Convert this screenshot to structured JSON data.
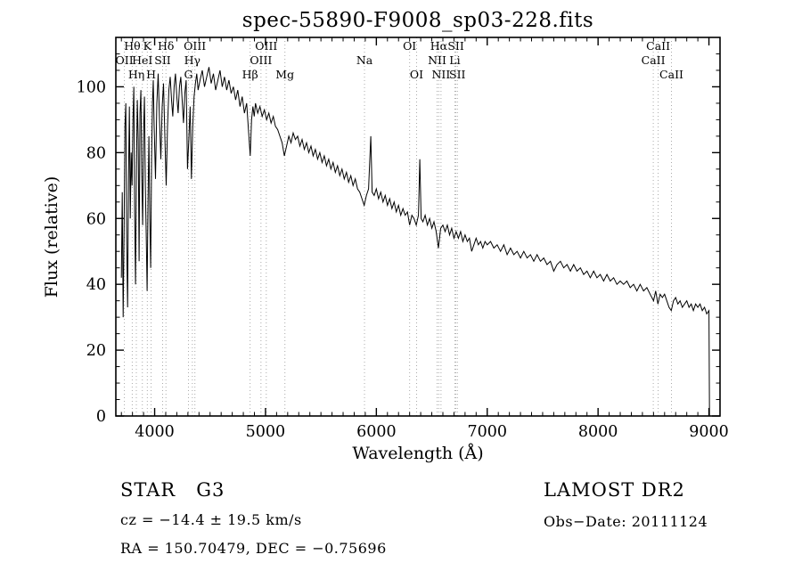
{
  "title": "spec-55890-F9008_sp03-228.fits",
  "annotations": {
    "class_label": "STAR   G3",
    "survey": "LAMOST DR2",
    "cz": "cz = −14.4 ± 19.5 km/s",
    "obs_date": "Obs−Date: 20111124",
    "radec": "RA = 150.70479, DEC = −0.75696"
  },
  "chart_data": {
    "type": "line",
    "title": "spec-55890-F9008_sp03-228.fits",
    "xlabel": "Wavelength (Å)",
    "ylabel": "Flux (relative)",
    "xlim": [
      3650,
      9100
    ],
    "ylim": [
      0,
      115
    ],
    "x_ticks": [
      4000,
      5000,
      6000,
      7000,
      8000,
      9000
    ],
    "y_ticks": [
      0,
      20,
      40,
      60,
      80,
      100
    ],
    "grid": false,
    "legend": "none",
    "line_color": "#000000",
    "feature_line_color": "#aaaaaa",
    "spectral_lines": [
      {
        "label": "Hθ",
        "wavelength": 3798,
        "row": 0
      },
      {
        "label": "K",
        "wavelength": 3934,
        "row": 0
      },
      {
        "label": "Hδ",
        "wavelength": 4102,
        "row": 0
      },
      {
        "label": "OIII",
        "wavelength": 4363,
        "row": 0
      },
      {
        "label": "OIII",
        "wavelength": 5007,
        "row": 0
      },
      {
        "label": "OI",
        "wavelength": 6300,
        "row": 0
      },
      {
        "label": "Hα",
        "wavelength": 6563,
        "row": 0
      },
      {
        "label": "SII",
        "wavelength": 6717,
        "row": 0
      },
      {
        "label": "CaII",
        "wavelength": 8542,
        "row": 0
      },
      {
        "label": "OII",
        "wavelength": 3727,
        "row": 1
      },
      {
        "label": "HeI",
        "wavelength": 3889,
        "row": 1
      },
      {
        "label": "SII",
        "wavelength": 4072,
        "row": 1
      },
      {
        "label": "Hγ",
        "wavelength": 4340,
        "row": 1
      },
      {
        "label": "OIII",
        "wavelength": 4959,
        "row": 1
      },
      {
        "label": "Na",
        "wavelength": 5893,
        "row": 1
      },
      {
        "label": "NII",
        "wavelength": 6548,
        "row": 1
      },
      {
        "label": "Li",
        "wavelength": 6708,
        "row": 1
      },
      {
        "label": "CaII",
        "wavelength": 8498,
        "row": 1
      },
      {
        "label": "Hη",
        "wavelength": 3835,
        "row": 2
      },
      {
        "label": "H",
        "wavelength": 3968,
        "row": 2
      },
      {
        "label": "G",
        "wavelength": 4305,
        "row": 2
      },
      {
        "label": "Hβ",
        "wavelength": 4861,
        "row": 2
      },
      {
        "label": "Mg",
        "wavelength": 5175,
        "row": 2
      },
      {
        "label": "OI",
        "wavelength": 6363,
        "row": 2
      },
      {
        "label": "NII",
        "wavelength": 6583,
        "row": 2
      },
      {
        "label": "SII",
        "wavelength": 6731,
        "row": 2
      },
      {
        "label": "CaII",
        "wavelength": 8662,
        "row": 2
      }
    ],
    "points": [
      [
        3700,
        42
      ],
      [
        3708,
        68
      ],
      [
        3716,
        30
      ],
      [
        3724,
        55
      ],
      [
        3732,
        88
      ],
      [
        3740,
        95
      ],
      [
        3748,
        52
      ],
      [
        3756,
        33
      ],
      [
        3764,
        72
      ],
      [
        3772,
        94
      ],
      [
        3780,
        60
      ],
      [
        3788,
        80
      ],
      [
        3796,
        70
      ],
      [
        3804,
        90
      ],
      [
        3812,
        100
      ],
      [
        3820,
        62
      ],
      [
        3828,
        40
      ],
      [
        3836,
        75
      ],
      [
        3844,
        96
      ],
      [
        3852,
        84
      ],
      [
        3860,
        47
      ],
      [
        3868,
        92
      ],
      [
        3876,
        99
      ],
      [
        3884,
        73
      ],
      [
        3892,
        58
      ],
      [
        3900,
        86
      ],
      [
        3908,
        97
      ],
      [
        3916,
        70
      ],
      [
        3924,
        55
      ],
      [
        3932,
        38
      ],
      [
        3940,
        65
      ],
      [
        3948,
        85
      ],
      [
        3956,
        60
      ],
      [
        3964,
        45
      ],
      [
        3972,
        78
      ],
      [
        3980,
        95
      ],
      [
        3988,
        102
      ],
      [
        3996,
        88
      ],
      [
        4008,
        72
      ],
      [
        4020,
        95
      ],
      [
        4032,
        104
      ],
      [
        4044,
        90
      ],
      [
        4056,
        78
      ],
      [
        4068,
        94
      ],
      [
        4080,
        101
      ],
      [
        4092,
        85
      ],
      [
        4104,
        70
      ],
      [
        4116,
        88
      ],
      [
        4128,
        99
      ],
      [
        4140,
        103
      ],
      [
        4152,
        96
      ],
      [
        4164,
        91
      ],
      [
        4176,
        100
      ],
      [
        4188,
        104
      ],
      [
        4200,
        97
      ],
      [
        4212,
        92
      ],
      [
        4224,
        100
      ],
      [
        4236,
        103
      ],
      [
        4248,
        96
      ],
      [
        4260,
        89
      ],
      [
        4272,
        98
      ],
      [
        4284,
        102
      ],
      [
        4296,
        75
      ],
      [
        4308,
        84
      ],
      [
        4320,
        94
      ],
      [
        4332,
        72
      ],
      [
        4344,
        88
      ],
      [
        4356,
        97
      ],
      [
        4368,
        101
      ],
      [
        4380,
        104
      ],
      [
        4392,
        99
      ],
      [
        4410,
        102
      ],
      [
        4430,
        105
      ],
      [
        4450,
        100
      ],
      [
        4470,
        103
      ],
      [
        4490,
        106
      ],
      [
        4510,
        101
      ],
      [
        4530,
        104
      ],
      [
        4550,
        99
      ],
      [
        4570,
        102
      ],
      [
        4590,
        105
      ],
      [
        4610,
        100
      ],
      [
        4630,
        103
      ],
      [
        4650,
        99
      ],
      [
        4670,
        102
      ],
      [
        4690,
        98
      ],
      [
        4710,
        100
      ],
      [
        4730,
        96
      ],
      [
        4750,
        99
      ],
      [
        4770,
        94
      ],
      [
        4790,
        97
      ],
      [
        4810,
        92
      ],
      [
        4830,
        95
      ],
      [
        4850,
        85
      ],
      [
        4862,
        79
      ],
      [
        4874,
        90
      ],
      [
        4886,
        94
      ],
      [
        4898,
        91
      ],
      [
        4910,
        95
      ],
      [
        4930,
        92
      ],
      [
        4950,
        94
      ],
      [
        4970,
        91
      ],
      [
        4990,
        93
      ],
      [
        5010,
        90
      ],
      [
        5030,
        92
      ],
      [
        5050,
        89
      ],
      [
        5070,
        91
      ],
      [
        5090,
        88
      ],
      [
        5110,
        87
      ],
      [
        5130,
        85
      ],
      [
        5150,
        83
      ],
      [
        5170,
        79
      ],
      [
        5190,
        82
      ],
      [
        5210,
        85
      ],
      [
        5230,
        83
      ],
      [
        5250,
        86
      ],
      [
        5270,
        84
      ],
      [
        5290,
        85
      ],
      [
        5310,
        82
      ],
      [
        5330,
        84
      ],
      [
        5350,
        81
      ],
      [
        5370,
        83
      ],
      [
        5390,
        80
      ],
      [
        5410,
        82
      ],
      [
        5430,
        79
      ],
      [
        5450,
        81
      ],
      [
        5470,
        78
      ],
      [
        5490,
        80
      ],
      [
        5510,
        77
      ],
      [
        5530,
        79
      ],
      [
        5550,
        76
      ],
      [
        5570,
        78
      ],
      [
        5590,
        75
      ],
      [
        5610,
        77
      ],
      [
        5630,
        74
      ],
      [
        5650,
        76
      ],
      [
        5670,
        73
      ],
      [
        5690,
        75
      ],
      [
        5710,
        72
      ],
      [
        5730,
        74
      ],
      [
        5750,
        71
      ],
      [
        5770,
        73
      ],
      [
        5790,
        70
      ],
      [
        5810,
        72
      ],
      [
        5830,
        69
      ],
      [
        5850,
        68
      ],
      [
        5870,
        66
      ],
      [
        5890,
        64
      ],
      [
        5910,
        67
      ],
      [
        5930,
        69
      ],
      [
        5950,
        85
      ],
      [
        5962,
        68
      ],
      [
        5980,
        67
      ],
      [
        6000,
        69
      ],
      [
        6020,
        66
      ],
      [
        6040,
        68
      ],
      [
        6060,
        65
      ],
      [
        6080,
        67
      ],
      [
        6100,
        64
      ],
      [
        6120,
        66
      ],
      [
        6140,
        63
      ],
      [
        6160,
        65
      ],
      [
        6180,
        62
      ],
      [
        6200,
        64
      ],
      [
        6220,
        61
      ],
      [
        6240,
        63
      ],
      [
        6260,
        61
      ],
      [
        6280,
        62
      ],
      [
        6300,
        58
      ],
      [
        6320,
        61
      ],
      [
        6340,
        60
      ],
      [
        6360,
        58
      ],
      [
        6380,
        61
      ],
      [
        6392,
        78
      ],
      [
        6404,
        60
      ],
      [
        6420,
        59
      ],
      [
        6440,
        61
      ],
      [
        6460,
        58
      ],
      [
        6480,
        60
      ],
      [
        6500,
        57
      ],
      [
        6520,
        59
      ],
      [
        6540,
        56
      ],
      [
        6560,
        51
      ],
      [
        6580,
        57
      ],
      [
        6600,
        58
      ],
      [
        6620,
        56
      ],
      [
        6640,
        58
      ],
      [
        6660,
        55
      ],
      [
        6680,
        57
      ],
      [
        6700,
        54
      ],
      [
        6720,
        56
      ],
      [
        6740,
        54
      ],
      [
        6760,
        56
      ],
      [
        6780,
        53
      ],
      [
        6800,
        55
      ],
      [
        6820,
        53
      ],
      [
        6840,
        54
      ],
      [
        6860,
        50
      ],
      [
        6880,
        52
      ],
      [
        6900,
        54
      ],
      [
        6920,
        52
      ],
      [
        6940,
        53
      ],
      [
        6960,
        51
      ],
      [
        6980,
        53
      ],
      [
        7000,
        52
      ],
      [
        7030,
        53
      ],
      [
        7060,
        51
      ],
      [
        7090,
        52
      ],
      [
        7120,
        50
      ],
      [
        7150,
        52
      ],
      [
        7180,
        49
      ],
      [
        7210,
        51
      ],
      [
        7240,
        49
      ],
      [
        7270,
        50
      ],
      [
        7300,
        48
      ],
      [
        7330,
        50
      ],
      [
        7360,
        48
      ],
      [
        7390,
        49
      ],
      [
        7420,
        47
      ],
      [
        7450,
        49
      ],
      [
        7480,
        47
      ],
      [
        7510,
        48
      ],
      [
        7540,
        46
      ],
      [
        7570,
        47
      ],
      [
        7600,
        44
      ],
      [
        7630,
        46
      ],
      [
        7660,
        47
      ],
      [
        7690,
        45
      ],
      [
        7720,
        46
      ],
      [
        7750,
        44
      ],
      [
        7780,
        46
      ],
      [
        7810,
        44
      ],
      [
        7840,
        45
      ],
      [
        7870,
        43
      ],
      [
        7900,
        44
      ],
      [
        7930,
        42
      ],
      [
        7960,
        44
      ],
      [
        7990,
        42
      ],
      [
        8020,
        43
      ],
      [
        8050,
        41
      ],
      [
        8080,
        43
      ],
      [
        8110,
        41
      ],
      [
        8140,
        42
      ],
      [
        8170,
        40
      ],
      [
        8200,
        41
      ],
      [
        8230,
        40
      ],
      [
        8260,
        41
      ],
      [
        8290,
        39
      ],
      [
        8320,
        40
      ],
      [
        8350,
        38
      ],
      [
        8380,
        40
      ],
      [
        8410,
        38
      ],
      [
        8440,
        39
      ],
      [
        8470,
        37
      ],
      [
        8500,
        35
      ],
      [
        8520,
        38
      ],
      [
        8540,
        34
      ],
      [
        8560,
        37
      ],
      [
        8580,
        36
      ],
      [
        8600,
        37
      ],
      [
        8620,
        35
      ],
      [
        8640,
        33
      ],
      [
        8660,
        32
      ],
      [
        8680,
        35
      ],
      [
        8700,
        36
      ],
      [
        8720,
        34
      ],
      [
        8740,
        35
      ],
      [
        8760,
        33
      ],
      [
        8780,
        34
      ],
      [
        8800,
        35
      ],
      [
        8820,
        33
      ],
      [
        8840,
        34
      ],
      [
        8860,
        32
      ],
      [
        8880,
        34
      ],
      [
        8900,
        33
      ],
      [
        8920,
        34
      ],
      [
        8940,
        32
      ],
      [
        8960,
        33
      ],
      [
        8980,
        31
      ],
      [
        9000,
        32
      ],
      [
        9005,
        0
      ]
    ]
  }
}
